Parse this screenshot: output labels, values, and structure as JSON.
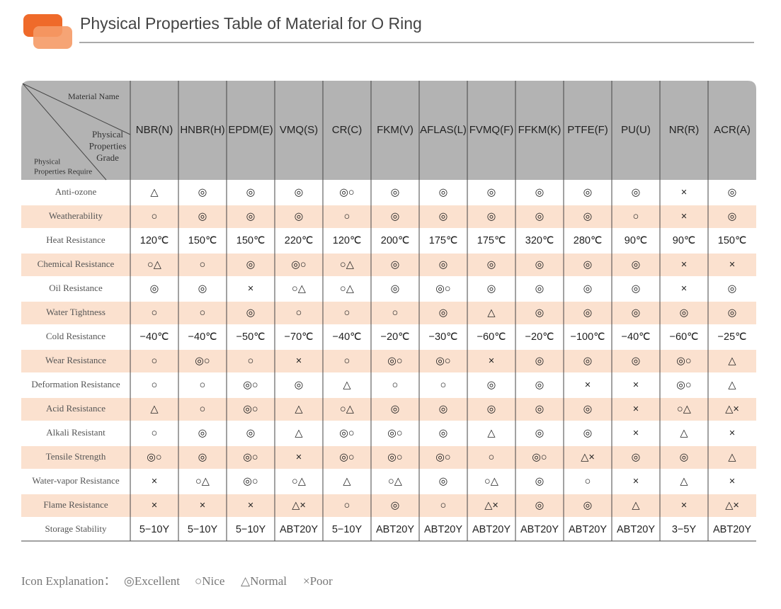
{
  "header": {
    "title": "Physical Properties Table of Material for O Ring"
  },
  "table": {
    "corner": {
      "top": "Material Name",
      "middle": [
        "Physical",
        "Properties",
        "Grade"
      ],
      "bottom": [
        "Physical",
        "Properties Require"
      ]
    },
    "columns": [
      "NBR(N)",
      "HNBR(H)",
      "EPDM(E)",
      "VMQ(S)",
      "CR(C)",
      "FKM(V)",
      "AFLAS(L)",
      "FVMQ(F)",
      "FFKM(K)",
      "PTFE(F)",
      "PU(U)",
      "NR(R)",
      "ACR(A)"
    ],
    "rows": [
      {
        "label": "Anti-ozone",
        "cells": [
          "△",
          "◎",
          "◎",
          "◎",
          "◎○",
          "◎",
          "◎",
          "◎",
          "◎",
          "◎",
          "◎",
          "×",
          "◎"
        ]
      },
      {
        "label": "Weatherability",
        "cells": [
          "○",
          "◎",
          "◎",
          "◎",
          "○",
          "◎",
          "◎",
          "◎",
          "◎",
          "◎",
          "○",
          "×",
          "◎"
        ]
      },
      {
        "label": "Heat Resistance",
        "cells": [
          "120℃",
          "150℃",
          "150℃",
          "220℃",
          "120℃",
          "200℃",
          "175℃",
          "175℃",
          "320℃",
          "280℃",
          "90℃",
          "90℃",
          "150℃"
        ]
      },
      {
        "label": "Chemical Resistance",
        "cells": [
          "○△",
          "○",
          "◎",
          "◎○",
          "○△",
          "◎",
          "◎",
          "◎",
          "◎",
          "◎",
          "◎",
          "×",
          "×"
        ]
      },
      {
        "label": "Oil Resistance",
        "cells": [
          "◎",
          "◎",
          "×",
          "○△",
          "○△",
          "◎",
          "◎○",
          "◎",
          "◎",
          "◎",
          "◎",
          "×",
          "◎"
        ]
      },
      {
        "label": "Water Tightness",
        "cells": [
          "○",
          "○",
          "◎",
          "○",
          "○",
          "○",
          "◎",
          "△",
          "◎",
          "◎",
          "◎",
          "◎",
          "◎"
        ]
      },
      {
        "label": "Cold Resistance",
        "cells": [
          "−40℃",
          "−40℃",
          "−50℃",
          "−70℃",
          "−40℃",
          "−20℃",
          "−30℃",
          "−60℃",
          "−20℃",
          "−100℃",
          "−40℃",
          "−60℃",
          "−25℃"
        ]
      },
      {
        "label": "Wear Resistance",
        "cells": [
          "○",
          "◎○",
          "○",
          "×",
          "○",
          "◎○",
          "◎○",
          "×",
          "◎",
          "◎",
          "◎",
          "◎○",
          "△"
        ]
      },
      {
        "label": "Deformation Resistance",
        "cells": [
          "○",
          "○",
          "◎○",
          "◎",
          "△",
          "○",
          "○",
          "◎",
          "◎",
          "×",
          "×",
          "◎○",
          "△"
        ]
      },
      {
        "label": "Acid Resistance",
        "cells": [
          "△",
          "○",
          "◎○",
          "△",
          "○△",
          "◎",
          "◎",
          "◎",
          "◎",
          "◎",
          "×",
          "○△",
          "△×"
        ]
      },
      {
        "label": "Alkali Resistant",
        "cells": [
          "○",
          "◎",
          "◎",
          "△",
          "◎○",
          "◎○",
          "◎",
          "△",
          "◎",
          "◎",
          "×",
          "△",
          "×"
        ]
      },
      {
        "label": "Tensile Strength",
        "cells": [
          "◎○",
          "◎",
          "◎○",
          "×",
          "◎○",
          "◎○",
          "◎○",
          "○",
          "◎○",
          "△×",
          "◎",
          "◎",
          "△"
        ]
      },
      {
        "label": "Water-vapor Resistance",
        "cells": [
          "×",
          "○△",
          "◎○",
          "○△",
          "△",
          "○△",
          "◎",
          "○△",
          "◎",
          "○",
          "×",
          "△",
          "×"
        ]
      },
      {
        "label": "Flame Resistance",
        "cells": [
          "×",
          "×",
          "×",
          "△×",
          "○",
          "◎",
          "○",
          "△×",
          "◎",
          "◎",
          "△",
          "×",
          "△×"
        ]
      },
      {
        "label": "Storage Stability",
        "cells": [
          "5−10Y",
          "5−10Y",
          "5−10Y",
          "ABT20Y",
          "5−10Y",
          "ABT20Y",
          "ABT20Y",
          "ABT20Y",
          "ABT20Y",
          "ABT20Y",
          "ABT20Y",
          "3−5Y",
          "ABT20Y"
        ]
      }
    ]
  },
  "legend": {
    "title": "Icon Explanation：",
    "items": [
      "◎Excellent",
      "○Nice",
      "△Normal",
      "×Poor"
    ]
  }
}
